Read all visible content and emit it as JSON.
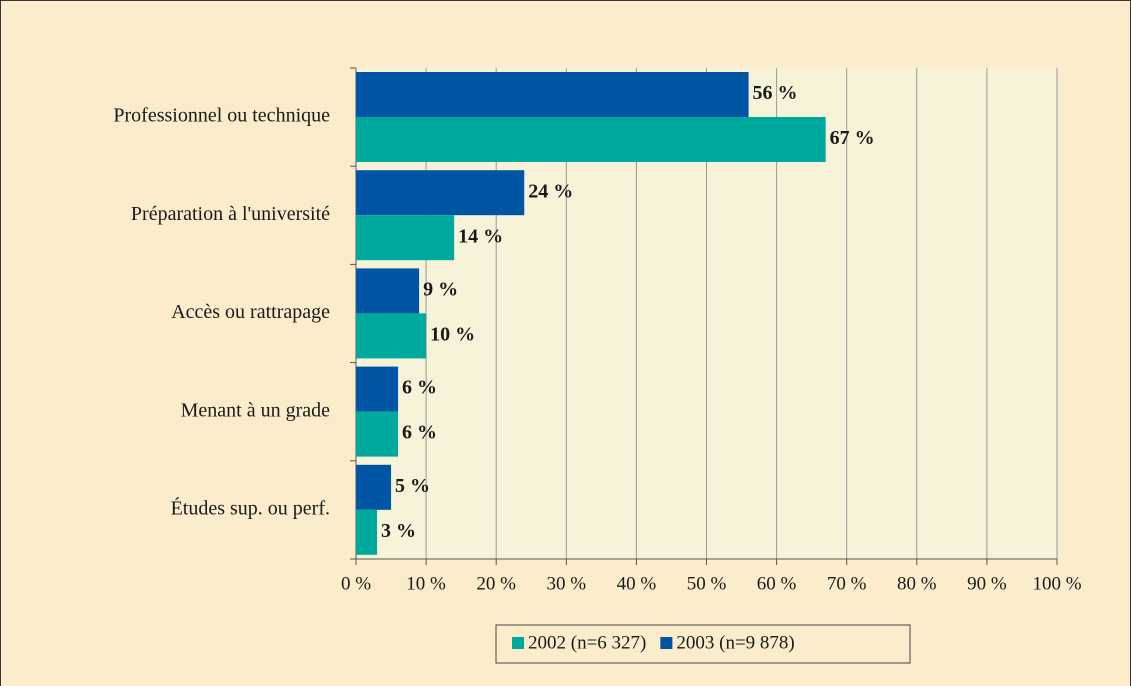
{
  "chart_data": {
    "type": "barh",
    "categories": [
      "Professionnel ou technique",
      "Préparation à l'université",
      "Accès ou rattrapage",
      "Menant à un grade",
      "Études sup. ou perf."
    ],
    "series": [
      {
        "name": "2002 (n=6 327)",
        "color": "#00a99d",
        "values": [
          67,
          14,
          10,
          6,
          3
        ],
        "value_labels": [
          "67 %",
          "14 %",
          "10 %",
          "6 %",
          "3 %"
        ]
      },
      {
        "name": "2003 (n=9 878)",
        "color": "#0055a5",
        "values": [
          56,
          24,
          9,
          6,
          5
        ],
        "value_labels": [
          "56 %",
          "24 %",
          "9 %",
          "6 %",
          "5 %"
        ]
      }
    ],
    "xlim": [
      0,
      100
    ],
    "xticks": [
      {
        "value": 0,
        "label": "0 %"
      },
      {
        "value": 10,
        "label": "10 %"
      },
      {
        "value": 20,
        "label": "20 %"
      },
      {
        "value": 30,
        "label": "30 %"
      },
      {
        "value": 40,
        "label": "40 %"
      },
      {
        "value": 50,
        "label": "50 %"
      },
      {
        "value": 60,
        "label": "60 %"
      },
      {
        "value": 70,
        "label": "70 %"
      },
      {
        "value": 80,
        "label": "80 %"
      },
      {
        "value": 90,
        "label": "90 %"
      },
      {
        "value": 100,
        "label": "100 %"
      }
    ],
    "grid": true,
    "legend": "bottom"
  }
}
